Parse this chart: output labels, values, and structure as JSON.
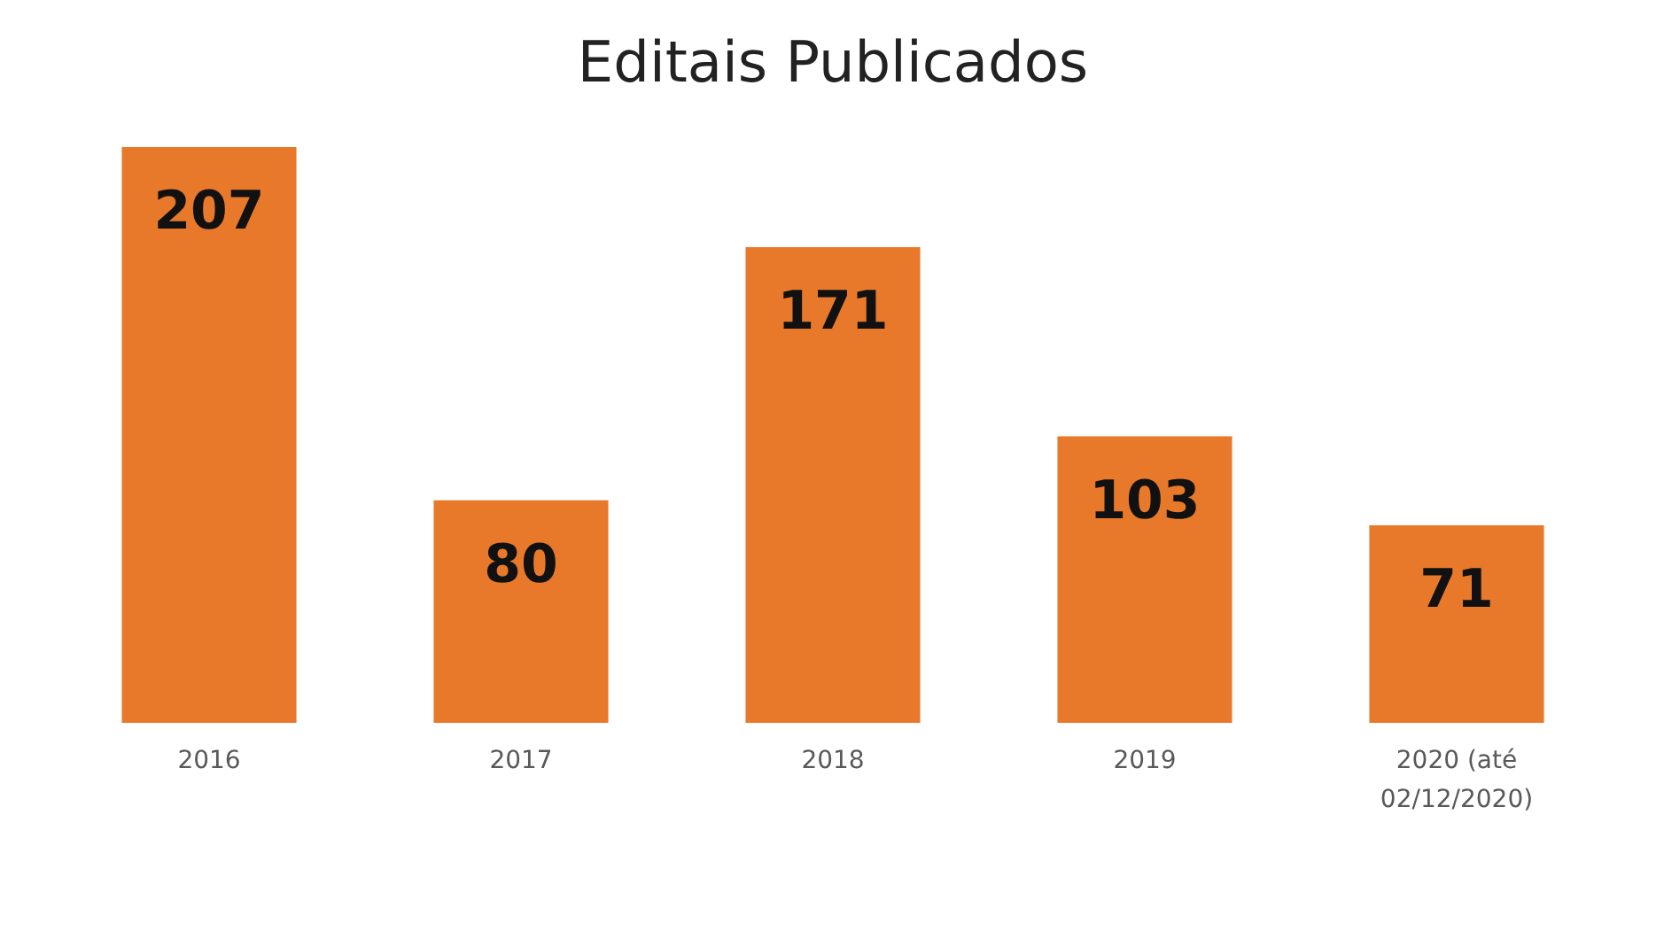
{
  "chart_data": {
    "type": "bar",
    "title": "Editais Publicados",
    "categories": [
      "2016",
      "2017",
      "2018",
      "2019",
      "2020 (até 02/12/2020)"
    ],
    "values": [
      207,
      80,
      171,
      103,
      71
    ],
    "color": "#e8792b",
    "data_labels": true
  }
}
